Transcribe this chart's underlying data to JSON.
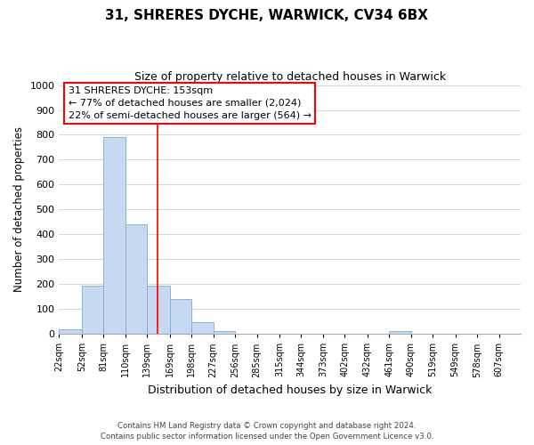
{
  "title": "31, SHRERES DYCHE, WARWICK, CV34 6BX",
  "subtitle": "Size of property relative to detached houses in Warwick",
  "xlabel": "Distribution of detached houses by size in Warwick",
  "ylabel": "Number of detached properties",
  "bar_color": "#c5d9f0",
  "bar_edge_color": "#7aadd4",
  "bin_labels": [
    "22sqm",
    "52sqm",
    "81sqm",
    "110sqm",
    "139sqm",
    "169sqm",
    "198sqm",
    "227sqm",
    "256sqm",
    "285sqm",
    "315sqm",
    "344sqm",
    "373sqm",
    "402sqm",
    "432sqm",
    "461sqm",
    "490sqm",
    "519sqm",
    "549sqm",
    "578sqm",
    "607sqm"
  ],
  "bin_left_edges": [
    22,
    52,
    81,
    110,
    139,
    169,
    198,
    227,
    256,
    285,
    315,
    344,
    373,
    402,
    432,
    461,
    490,
    519,
    549,
    578
  ],
  "bin_widths": [
    30,
    29,
    29,
    29,
    30,
    29,
    29,
    29,
    29,
    30,
    29,
    29,
    29,
    30,
    29,
    29,
    29,
    30,
    29,
    29
  ],
  "bar_heights": [
    20,
    195,
    790,
    440,
    195,
    140,
    48,
    10,
    0,
    0,
    0,
    0,
    0,
    0,
    0,
    10,
    0,
    0,
    0,
    0
  ],
  "ylim": [
    0,
    1000
  ],
  "yticks": [
    0,
    100,
    200,
    300,
    400,
    500,
    600,
    700,
    800,
    900,
    1000
  ],
  "xlim_left": 22,
  "xlim_right": 636,
  "property_line_x": 153,
  "annotation_title": "31 SHRERES DYCHE: 153sqm",
  "annotation_line1": "← 77% of detached houses are smaller (2,024)",
  "annotation_line2": "22% of semi-detached houses are larger (564) →",
  "footer_line1": "Contains HM Land Registry data © Crown copyright and database right 2024.",
  "footer_line2": "Contains public sector information licensed under the Open Government Licence v3.0.",
  "background_color": "#ffffff",
  "grid_color": "#ccd9ec"
}
